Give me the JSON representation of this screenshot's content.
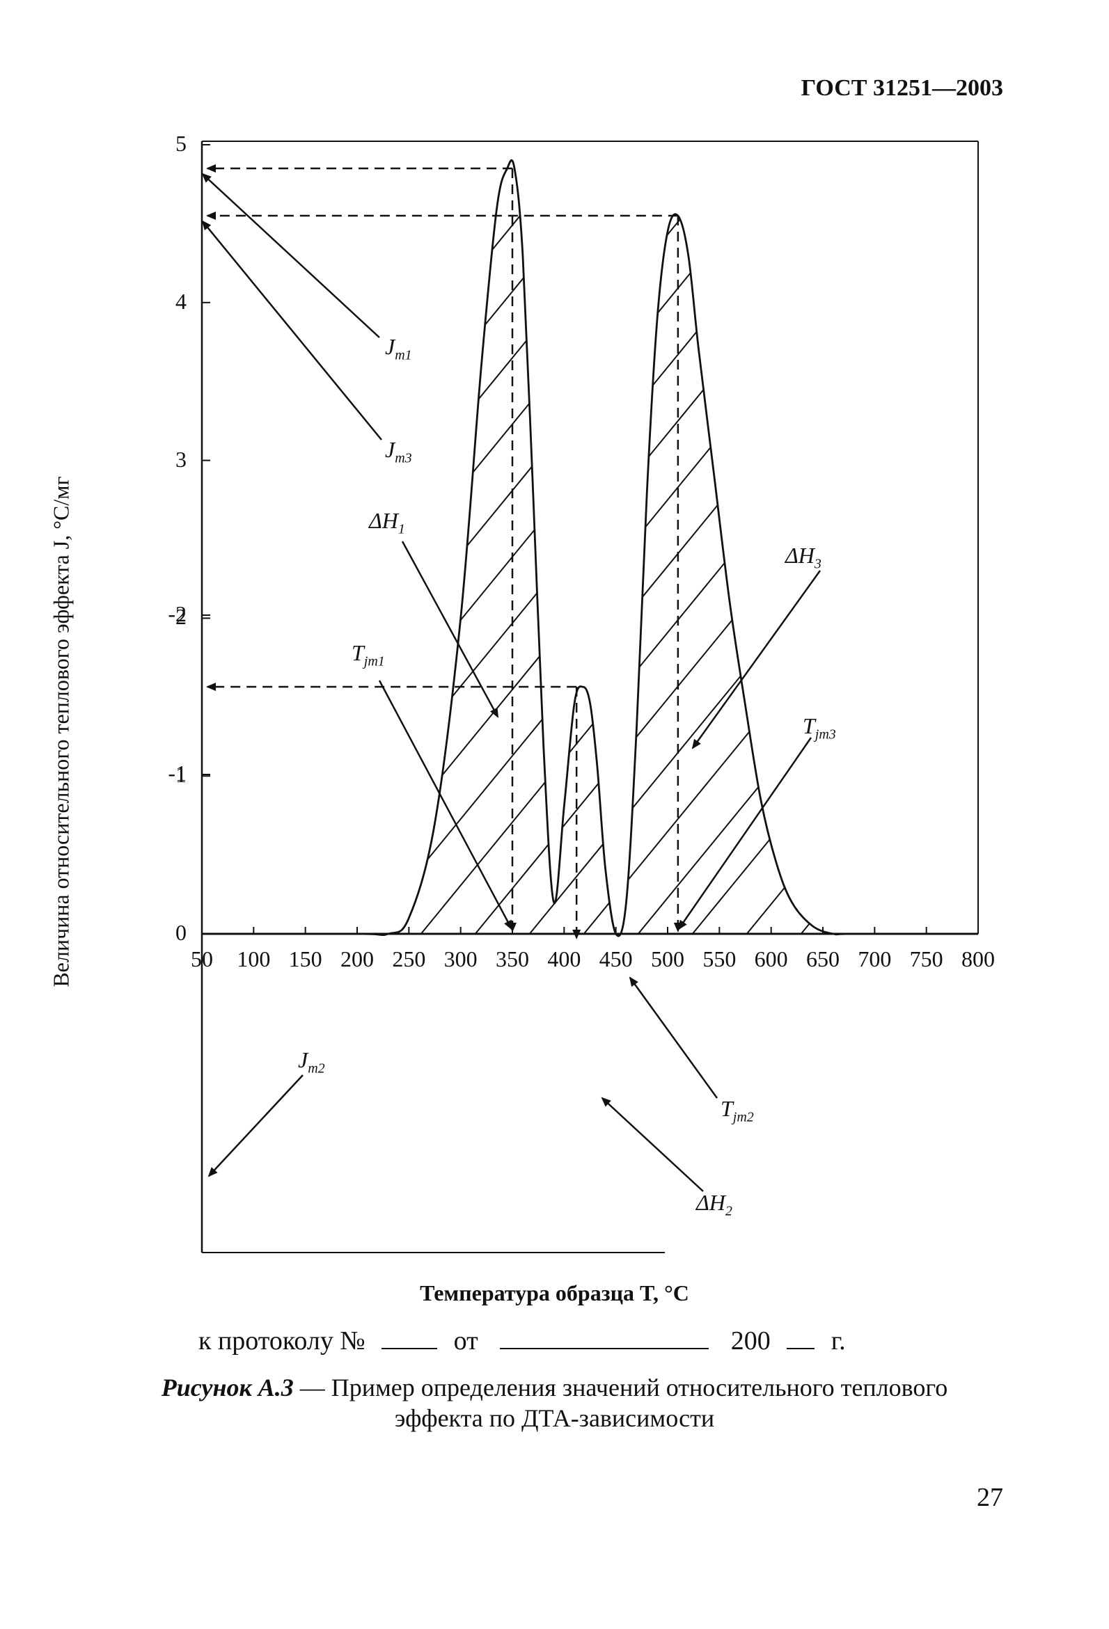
{
  "header": {
    "standard": "ГОСТ 31251—2003"
  },
  "chart_data": {
    "type": "line",
    "xlabel": "Температура образца T, °C",
    "ylabel": "Величина относительного теплового эффекта J, °C/мг",
    "xlim": [
      50,
      800
    ],
    "ylim": [
      -2,
      5
    ],
    "x_ticks": [
      "50",
      "100",
      "150",
      "200",
      "250",
      "300",
      "350",
      "400",
      "450",
      "500",
      "550",
      "600",
      "650",
      "700",
      "750",
      "800"
    ],
    "y_ticks": [
      "5",
      "4",
      "3",
      "2",
      "1",
      "0",
      "-1",
      "-2"
    ],
    "grid": false,
    "series": [
      {
        "x": [
          50,
          200,
          230,
          250,
          275,
          300,
          320,
          335,
          345,
          352,
          360,
          370,
          380,
          390,
          400,
          410,
          418,
          425,
          432,
          440,
          450,
          460,
          470,
          480,
          490,
          500,
          510,
          520,
          530,
          545,
          560,
          575,
          590,
          605,
          620,
          640,
          660,
          680,
          800
        ],
        "y": [
          0,
          0,
          0,
          0.1,
          0.7,
          2.0,
          3.6,
          4.6,
          4.85,
          4.85,
          4.3,
          2.8,
          1.2,
          0.2,
          -0.8,
          -1.45,
          -1.55,
          -1.45,
          -1.05,
          -0.4,
          0,
          0.2,
          1.3,
          2.8,
          3.9,
          4.45,
          4.55,
          4.3,
          3.7,
          2.9,
          2.1,
          1.45,
          0.85,
          0.45,
          0.2,
          0.05,
          0,
          0,
          0
        ]
      }
    ],
    "annotations": {
      "Jm1": {
        "label": "J",
        "sub": "m1",
        "value": 4.85
      },
      "Jm3": {
        "label": "J",
        "sub": "m3",
        "value": 4.55
      },
      "Jm2": {
        "label": "J",
        "sub": "m2",
        "value": -1.55
      },
      "dH1": {
        "label": "ΔH",
        "sub": "1"
      },
      "dH2": {
        "label": "ΔH",
        "sub": "2"
      },
      "dH3": {
        "label": "ΔH",
        "sub": "3"
      },
      "Tjm1": {
        "label": "T",
        "sub": "jm1",
        "value": 350
      },
      "Tjm2": {
        "label": "T",
        "sub": "jm2",
        "value": 412
      },
      "Tjm3": {
        "label": "T",
        "sub": "jm3",
        "value": 510
      }
    }
  },
  "protocol": {
    "prefix": "к протоколу №",
    "from": "от",
    "year": "200",
    "suffix": "г."
  },
  "caption": {
    "label": "Рисунок А.3",
    "dash": " — ",
    "line1": "Пример определения значений относительного теплового",
    "line2": "эффекта по ДТА-зависимости"
  },
  "page": {
    "number": "27"
  }
}
